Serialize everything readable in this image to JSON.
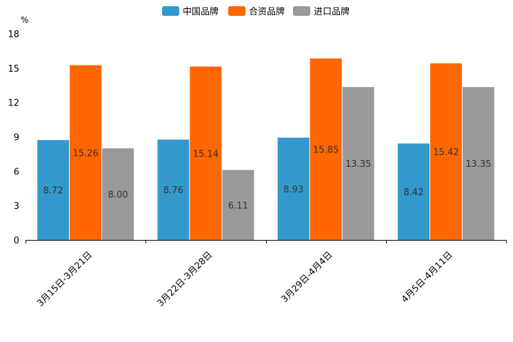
{
  "chart_data": {
    "type": "bar",
    "unit": "%",
    "categories": [
      "3月15日-3月21日",
      "3月22日-3月28日",
      "3月29日-4月4日",
      "4月5日-4月11日"
    ],
    "series": [
      {
        "name": "中国品牌",
        "color": "#3399cc",
        "values": [
          8.72,
          8.76,
          8.93,
          8.42
        ],
        "labels": [
          "8.72",
          "8.76",
          "8.93",
          "8.42"
        ]
      },
      {
        "name": "合资品牌",
        "color": "#ff6600",
        "values": [
          15.26,
          15.14,
          15.85,
          15.42
        ],
        "labels": [
          "15.26",
          "15.14",
          "15.85",
          "15.42"
        ]
      },
      {
        "name": "进口品牌",
        "color": "#999999",
        "values": [
          8.0,
          6.11,
          13.35,
          13.35
        ],
        "labels": [
          "8.00",
          "6.11",
          "13.35",
          "13.35"
        ]
      }
    ],
    "ylim": [
      0,
      18
    ],
    "yticks": [
      0,
      3,
      6,
      9,
      12,
      15,
      18
    ],
    "legend_position": "top-center",
    "grid": false
  }
}
